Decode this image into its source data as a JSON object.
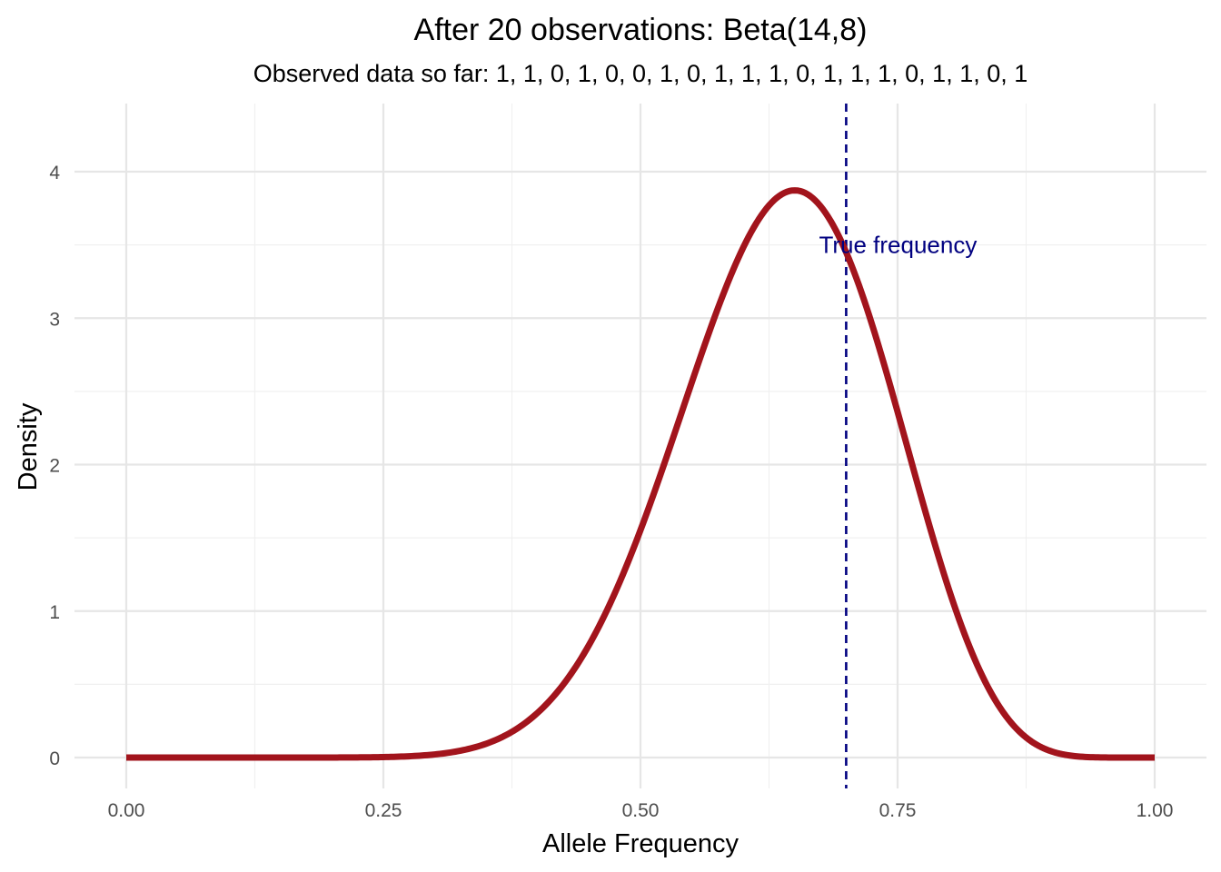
{
  "colors": {
    "curve": "#a2141c",
    "true_line": "#000080",
    "annotation": "#000080",
    "grid_major": "#e6e6e6",
    "grid_minor": "#f0f0f0",
    "tick_text": "#4d4d4d"
  },
  "chart_data": {
    "type": "line",
    "title": "After 20 observations: Beta(14,8)",
    "subtitle": "Observed data so far: 1, 1, 0, 1, 0, 0, 1, 0, 1, 1, 1, 0, 1, 1, 1, 0, 1, 1, 0, 1",
    "xlabel": "Allele Frequency",
    "ylabel": "Density",
    "xlim": [
      0,
      1
    ],
    "ylim": [
      0,
      4
    ],
    "grid": true,
    "legend": "none",
    "x_ticks": [
      0,
      0.25,
      0.5,
      0.75,
      1
    ],
    "x_tick_labels": [
      "0.00",
      "0.25",
      "0.50",
      "0.75",
      "1.00"
    ],
    "y_ticks": [
      0,
      1,
      2,
      3,
      4
    ],
    "y_tick_labels": [
      "0",
      "1",
      "2",
      "3",
      "4"
    ],
    "series": [
      {
        "distribution": "beta",
        "alpha": 14,
        "beta": 8,
        "x": [
          0,
          0.05,
          0.1,
          0.15,
          0.2,
          0.25,
          0.3,
          0.35,
          0.4,
          0.45,
          0.5,
          0.55,
          0.6,
          0.65,
          0.7,
          0.75,
          0.8,
          0.85,
          0.9,
          0.95,
          1
        ],
        "y": [
          0,
          0,
          0,
          0,
          0.001,
          0.014,
          0.066,
          0.227,
          0.581,
          1.153,
          1.853,
          2.764,
          3.473,
          3.867,
          3.569,
          2.768,
          1.635,
          0.707,
          0.166,
          0.012,
          0
        ]
      }
    ],
    "reference_lines": [
      {
        "x": 0.7,
        "style": "dashed",
        "label": "True frequency"
      }
    ],
    "annotations": [
      {
        "text": "True frequency",
        "x": 0.7,
        "y": 3.5
      }
    ]
  }
}
